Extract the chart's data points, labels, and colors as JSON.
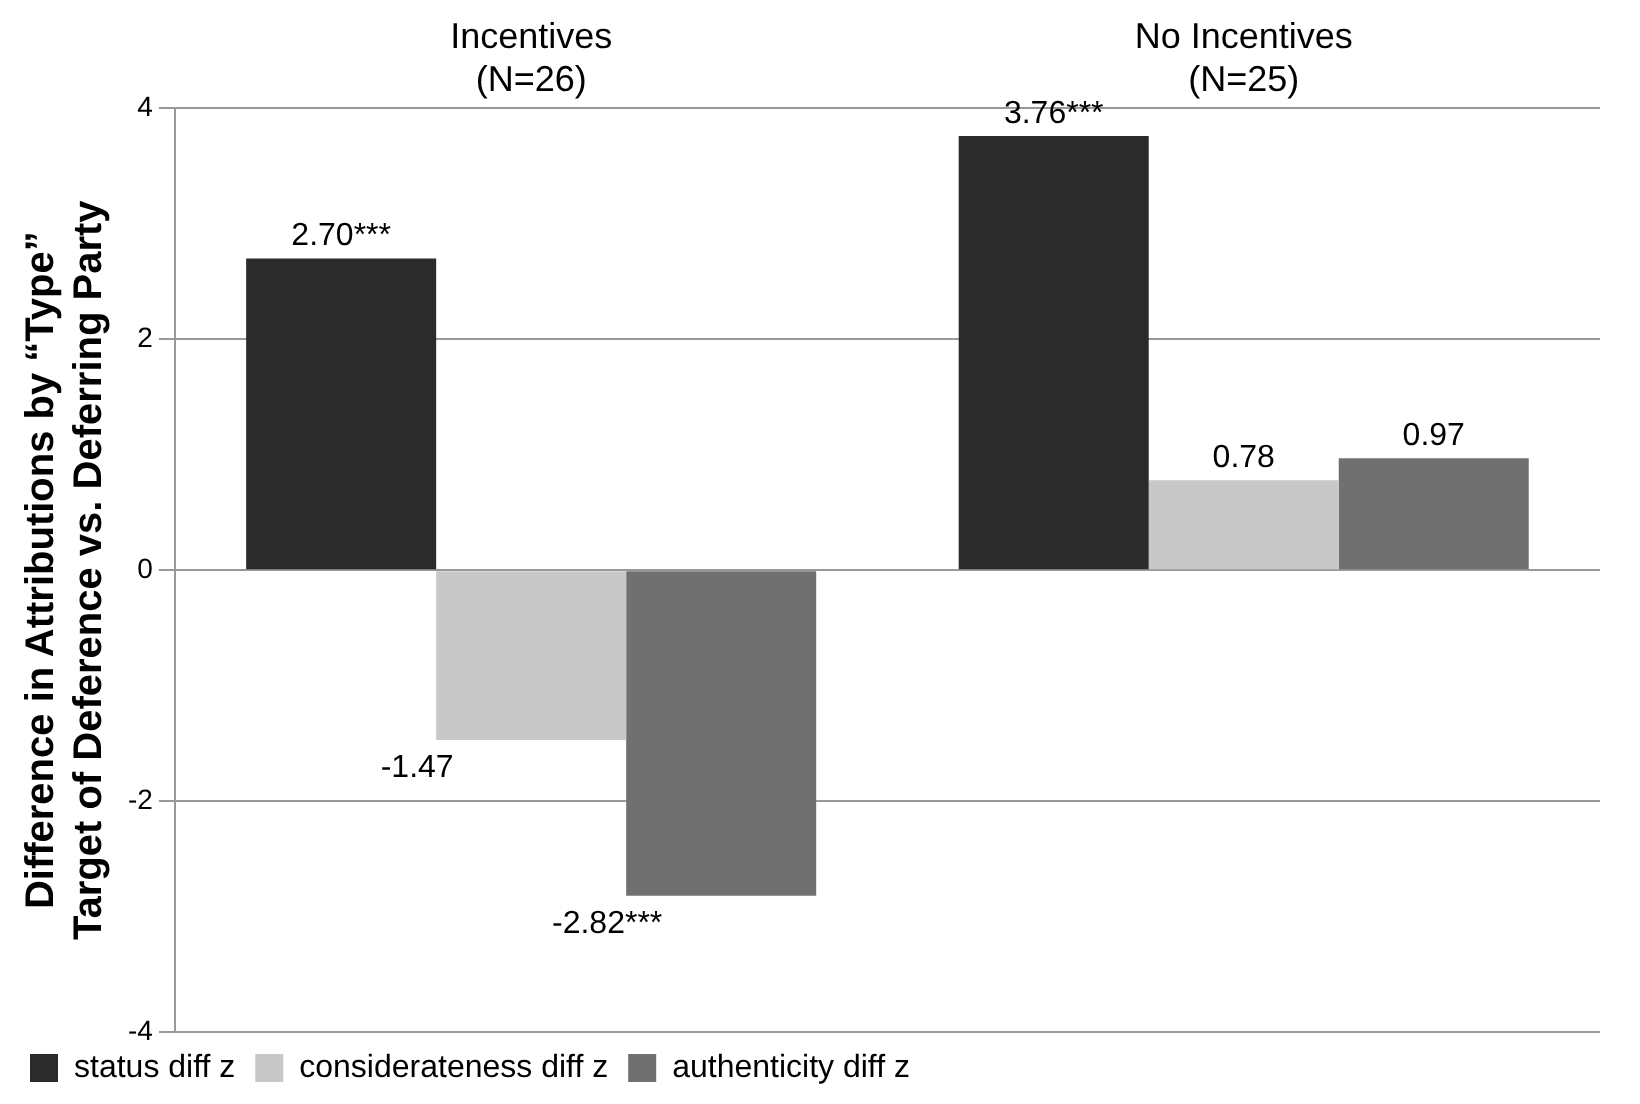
{
  "chart_data": {
    "type": "bar",
    "ylabel": "Difference in Attributions by “Type”\nTarget of Deference vs. Deferring Party",
    "categories": [
      "Incentives\n(N=26)",
      "No Incentives\n(N=25)"
    ],
    "series": [
      {
        "name": "status diff z",
        "color": "#2b2b2b",
        "values": [
          2.7,
          3.76
        ],
        "value_labels": [
          "2.70***",
          "3.76***"
        ]
      },
      {
        "name": "considerateness diff z",
        "color": "#c8c8c8",
        "values": [
          -1.47,
          0.78
        ],
        "value_labels": [
          "-1.47",
          "0.78"
        ]
      },
      {
        "name": "authenticity diff z",
        "color": "#707070",
        "values": [
          -2.82,
          0.97
        ],
        "value_labels": [
          "-2.82***",
          "0.97"
        ]
      }
    ],
    "ylim": [
      -4,
      4
    ],
    "yticks": [
      -4,
      -2,
      0,
      2,
      4
    ],
    "grid": "y",
    "legend": "bottom"
  }
}
